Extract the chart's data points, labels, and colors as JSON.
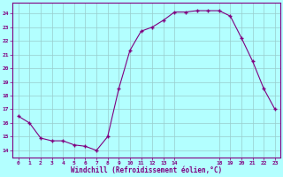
{
  "x": [
    0,
    1,
    2,
    3,
    4,
    5,
    6,
    7,
    8,
    9,
    10,
    11,
    12,
    13,
    14,
    15,
    16,
    17,
    18,
    19,
    20,
    21,
    22,
    23
  ],
  "y": [
    16.5,
    16.0,
    14.9,
    14.7,
    14.7,
    14.4,
    14.3,
    14.0,
    15.0,
    18.5,
    21.3,
    22.7,
    23.0,
    23.5,
    24.1,
    24.1,
    24.2,
    24.2,
    24.2,
    23.8,
    22.2,
    20.5,
    18.5,
    17.0
  ],
  "line_color": "#800080",
  "marker_color": "#800080",
  "bg_color": "#b3ffff",
  "grid_color": "#99cccc",
  "xlabel": "Windchill (Refroidissement éolien,°C)",
  "xlabel_color": "#800080",
  "ylim": [
    13.5,
    24.8
  ],
  "xlim": [
    -0.5,
    23.5
  ],
  "yticks": [
    14,
    15,
    16,
    17,
    18,
    19,
    20,
    21,
    22,
    23,
    24
  ],
  "xticks": [
    0,
    1,
    2,
    3,
    4,
    5,
    6,
    7,
    8,
    9,
    10,
    11,
    12,
    13,
    14,
    18,
    19,
    20,
    21,
    22,
    23
  ],
  "tick_color": "#800080",
  "tick_label_color": "#800080",
  "spine_color": "#800080"
}
